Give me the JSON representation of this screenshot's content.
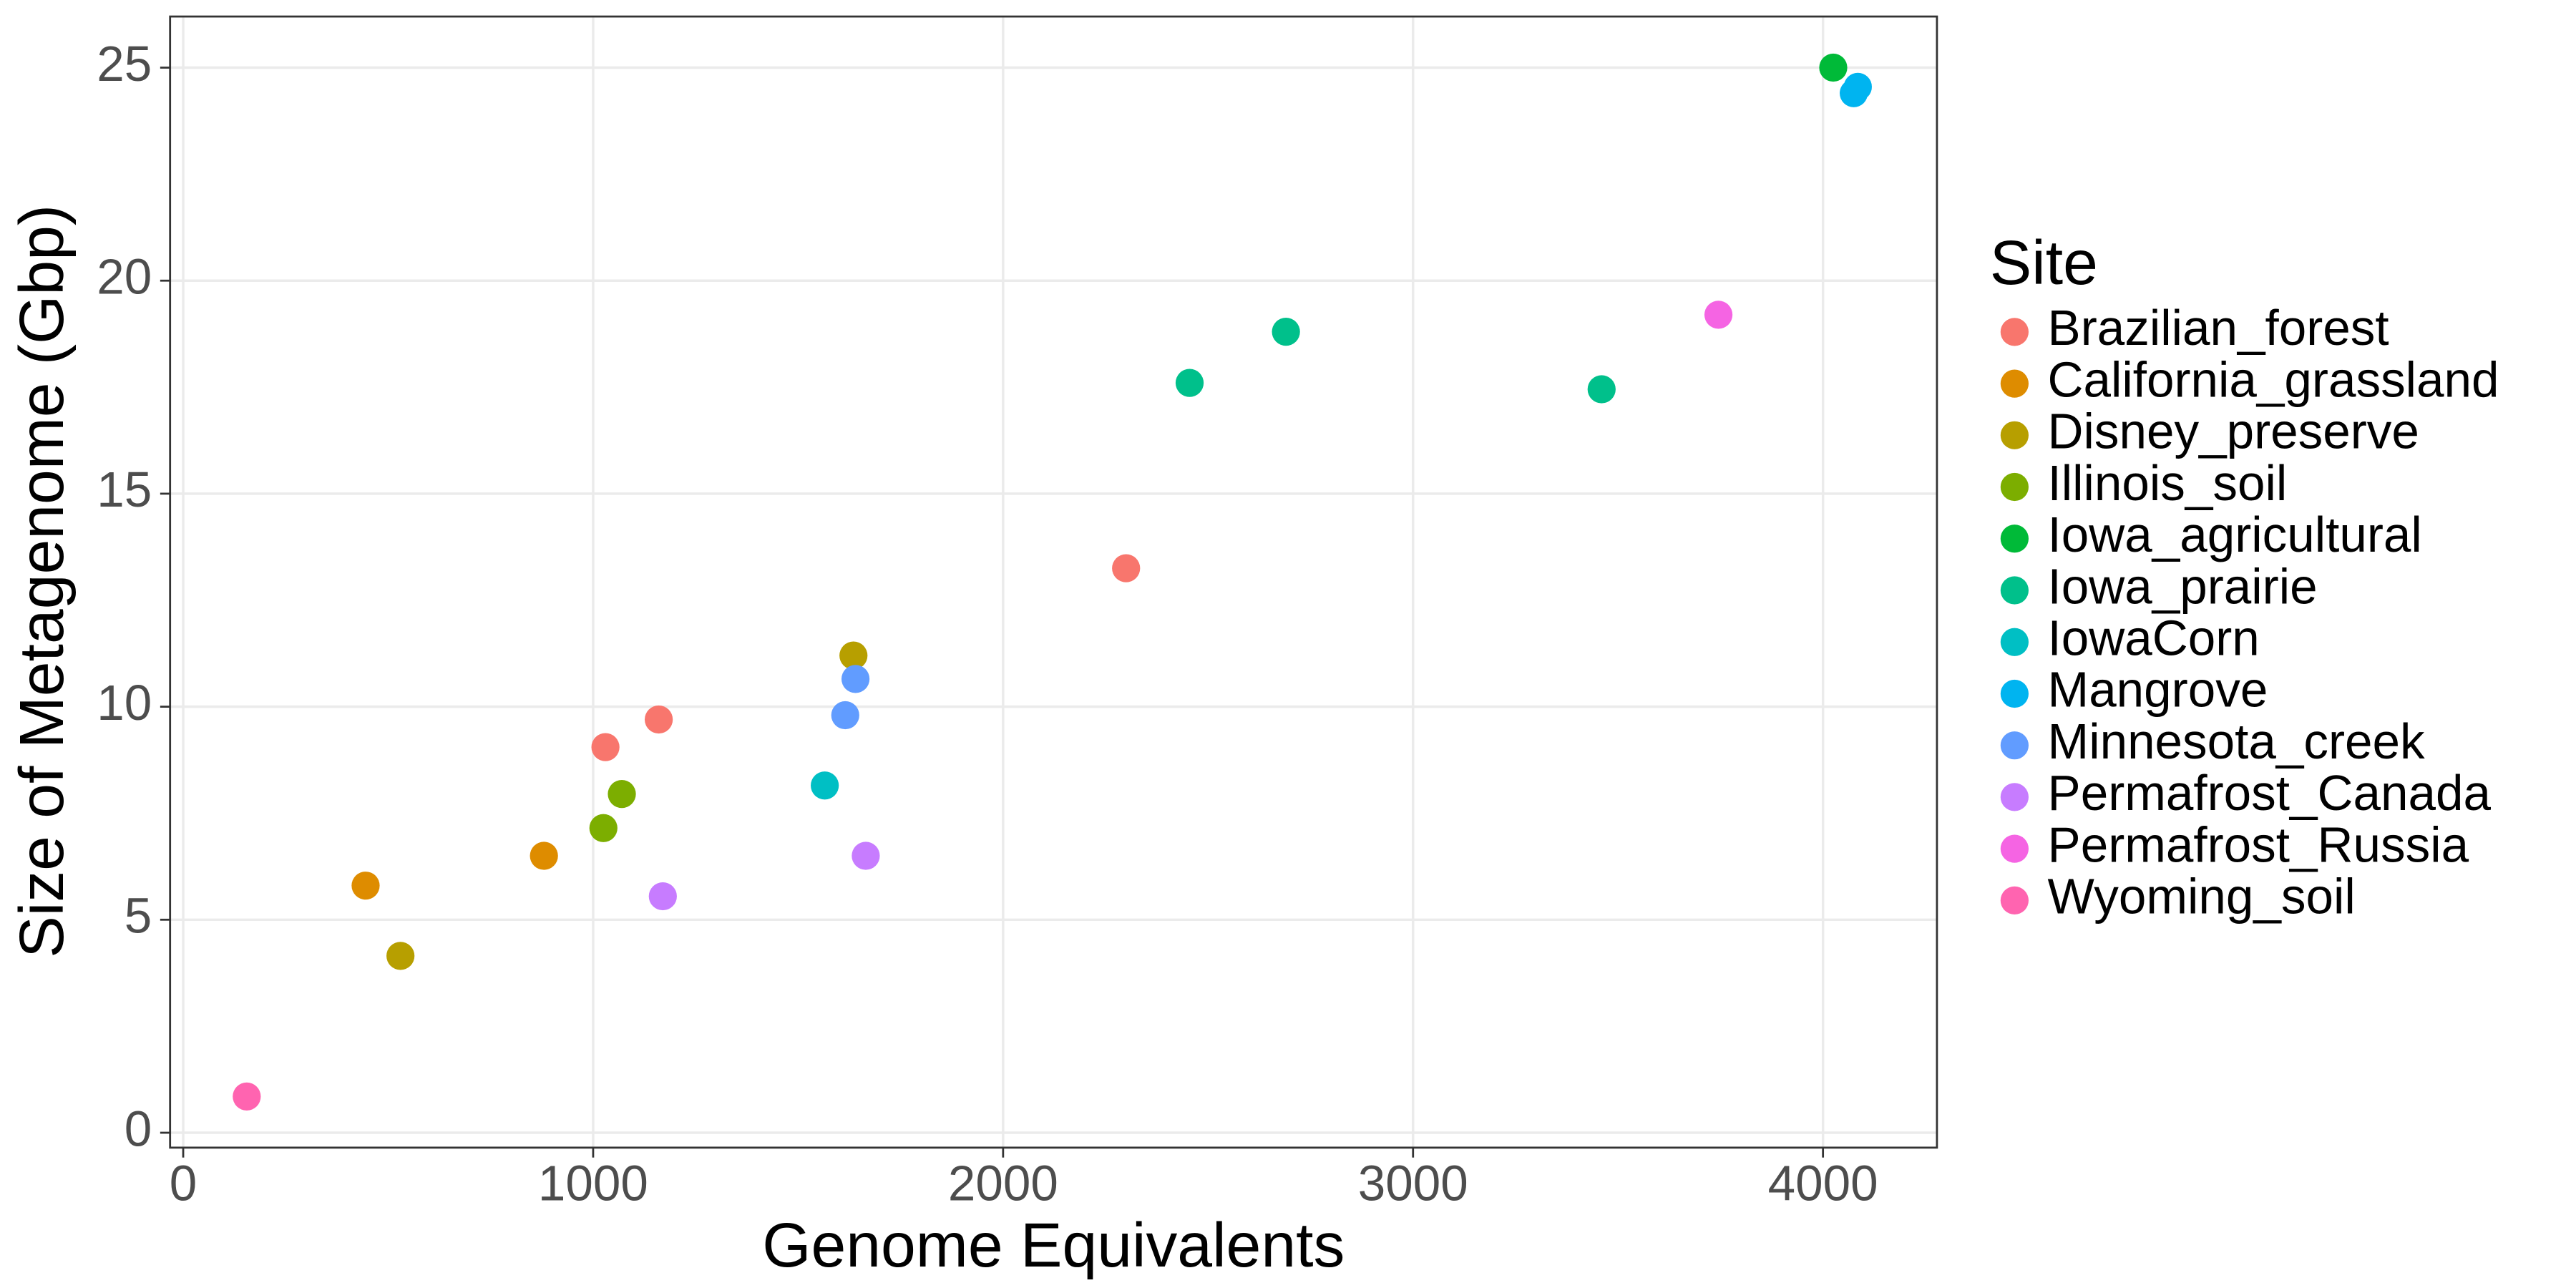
{
  "chart_data": {
    "type": "scatter",
    "x_label": "Genome Equivalents",
    "y_label": "Size of Metagenome (Gbp)",
    "legend_title": "Site",
    "legend_position": "right",
    "grid": true,
    "xlim": [
      -32,
      4278
    ],
    "ylim": [
      -0.35,
      26.2
    ],
    "xticks": [
      0,
      1000,
      2000,
      3000,
      4000
    ],
    "yticks": [
      0,
      5,
      10,
      15,
      20,
      25
    ],
    "series": [
      {
        "name": "Brazilian_forest",
        "color": "#F8766D",
        "x": [
          1030,
          1160,
          2300
        ],
        "values": [
          9.05,
          9.7,
          13.25
        ]
      },
      {
        "name": "California_grassland",
        "color": "#DE8C00",
        "x": [
          445,
          880
        ],
        "values": [
          5.8,
          6.5
        ]
      },
      {
        "name": "Disney_preserve",
        "color": "#B79F00",
        "x": [
          530,
          1635
        ],
        "values": [
          4.15,
          11.2
        ]
      },
      {
        "name": "Illinois_soil",
        "color": "#7CAE00",
        "x": [
          1025,
          1070
        ],
        "values": [
          7.15,
          7.95
        ]
      },
      {
        "name": "Iowa_agricultural",
        "color": "#00BA38",
        "x": [
          4025
        ],
        "values": [
          25.0
        ]
      },
      {
        "name": "Iowa_prairie",
        "color": "#00C08B",
        "x": [
          2455,
          2690,
          3460
        ],
        "values": [
          17.6,
          18.8,
          17.45
        ]
      },
      {
        "name": "IowaCorn",
        "color": "#00BFC4",
        "x": [
          1565
        ],
        "values": [
          8.15
        ]
      },
      {
        "name": "Mangrove",
        "color": "#00B4F0",
        "x": [
          4085,
          4075
        ],
        "values": [
          24.55,
          24.4
        ]
      },
      {
        "name": "Minnesota_creek",
        "color": "#619CFF",
        "x": [
          1615,
          1640
        ],
        "values": [
          9.8,
          10.65
        ]
      },
      {
        "name": "Permafrost_Canada",
        "color": "#C77CFF",
        "x": [
          1170,
          1665
        ],
        "values": [
          5.55,
          6.5
        ]
      },
      {
        "name": "Permafrost_Russia",
        "color": "#F564E3",
        "x": [
          3745
        ],
        "values": [
          19.2
        ]
      },
      {
        "name": "Wyoming_soil",
        "color": "#FF64B0",
        "x": [
          155
        ],
        "values": [
          0.85
        ]
      }
    ]
  }
}
